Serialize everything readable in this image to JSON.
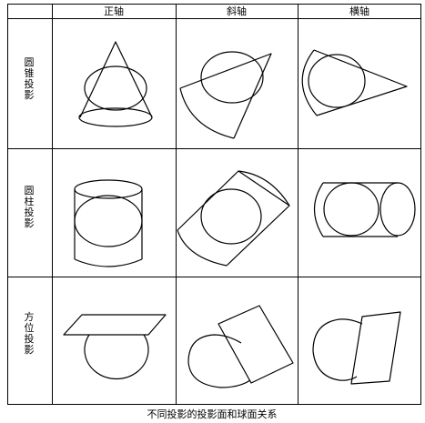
{
  "figure": {
    "caption": "不同投影的投影面和球面关系",
    "columns": [
      "正轴",
      "斜轴",
      "横轴"
    ],
    "rows": [
      {
        "id": "cone",
        "label": "圆锥投影"
      },
      {
        "id": "cylinder",
        "label": "圆柱投影"
      },
      {
        "id": "azimuthal",
        "label": "方位投影"
      }
    ],
    "cells": [
      [
        "normal-cone",
        "oblique-cone",
        "transverse-cone"
      ],
      [
        "normal-cylinder",
        "oblique-cylinder",
        "transverse-cylinder"
      ],
      [
        "normal-plane",
        "oblique-plane",
        "transverse-plane"
      ]
    ]
  },
  "colors": {
    "line": "#000000",
    "background": "#ffffff"
  }
}
